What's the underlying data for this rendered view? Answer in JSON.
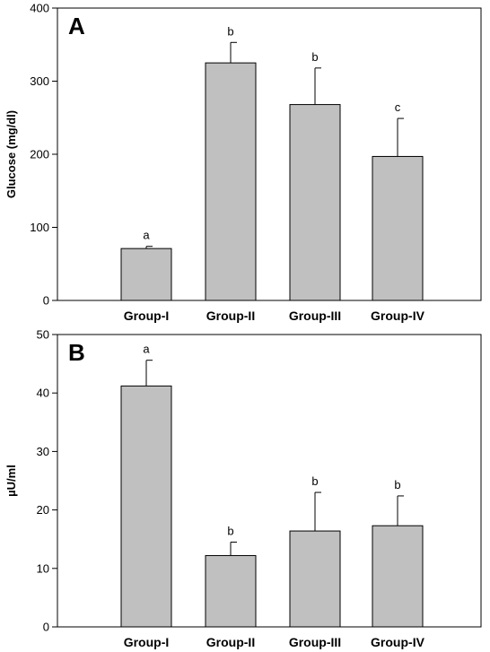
{
  "chart_data": [
    {
      "type": "bar",
      "panel": "A",
      "categories": [
        "Group-I",
        "Group-II",
        "Group-III",
        "Group-IV"
      ],
      "values": [
        71,
        325,
        268,
        197
      ],
      "errors": [
        3,
        28,
        50,
        52
      ],
      "significance": [
        "a",
        "b",
        "b",
        "c"
      ],
      "ylabel": "Glucose (mg/dl)",
      "ylim": [
        0,
        400
      ],
      "yticks": [
        0,
        100,
        200,
        300,
        400
      ],
      "grid": false,
      "bar_color": "#c0c0c0"
    },
    {
      "type": "bar",
      "panel": "B",
      "categories": [
        "Group-I",
        "Group-II",
        "Group-III",
        "Group-IV"
      ],
      "values": [
        41.2,
        12.2,
        16.4,
        17.3
      ],
      "errors": [
        4.4,
        2.3,
        6.6,
        5.1
      ],
      "significance": [
        "a",
        "b",
        "b",
        "b"
      ],
      "ylabel": "µU/ml",
      "ylim": [
        0,
        50
      ],
      "yticks": [
        0,
        10,
        20,
        30,
        40,
        50
      ],
      "grid": false,
      "bar_color": "#c0c0c0"
    }
  ]
}
